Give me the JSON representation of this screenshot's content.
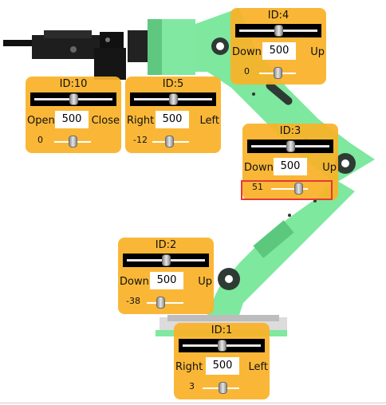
{
  "panels": [
    {
      "id": "id10",
      "title": "ID:10",
      "left_label": "Open",
      "right_label": "Close",
      "value": "500",
      "offset": "0"
    },
    {
      "id": "id5",
      "title": "ID:5",
      "left_label": "Right",
      "right_label": "Left",
      "value": "500",
      "offset": "-12"
    },
    {
      "id": "id4",
      "title": "ID:4",
      "left_label": "Down",
      "right_label": "Up",
      "value": "500",
      "offset": "0"
    },
    {
      "id": "id3",
      "title": "ID:3",
      "left_label": "Down",
      "right_label": "Up",
      "value": "500",
      "offset": "51"
    },
    {
      "id": "id2",
      "title": "ID:2",
      "left_label": "Down",
      "right_label": "Up",
      "value": "500",
      "offset": "-38"
    },
    {
      "id": "id1",
      "title": "ID:1",
      "left_label": "Right",
      "right_label": "Left",
      "value": "500",
      "offset": "3"
    }
  ],
  "colors": {
    "panel": "#FAB228",
    "arm": "#7EE89E",
    "arm_dark": "#2E3B35",
    "highlight": "#E53935"
  }
}
